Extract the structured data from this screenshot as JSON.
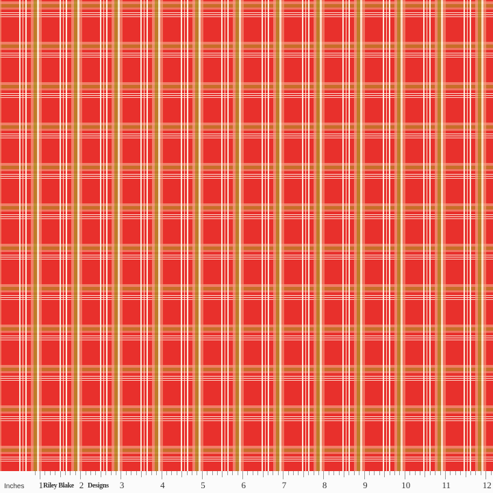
{
  "fabric": {
    "pattern": "plaid",
    "colors": {
      "base": "#e8302c",
      "stripe_light": "#fffaeb",
      "stripe_peach": "#f5a082",
      "stripe_olive": "#b09628"
    }
  },
  "ruler": {
    "unit_label": "Inches",
    "numbers": [
      "1",
      "2",
      "3",
      "4",
      "5",
      "6",
      "7",
      "8",
      "9",
      "10",
      "11",
      "12"
    ],
    "brand_words": [
      "Riley Blake",
      "Designs"
    ]
  }
}
